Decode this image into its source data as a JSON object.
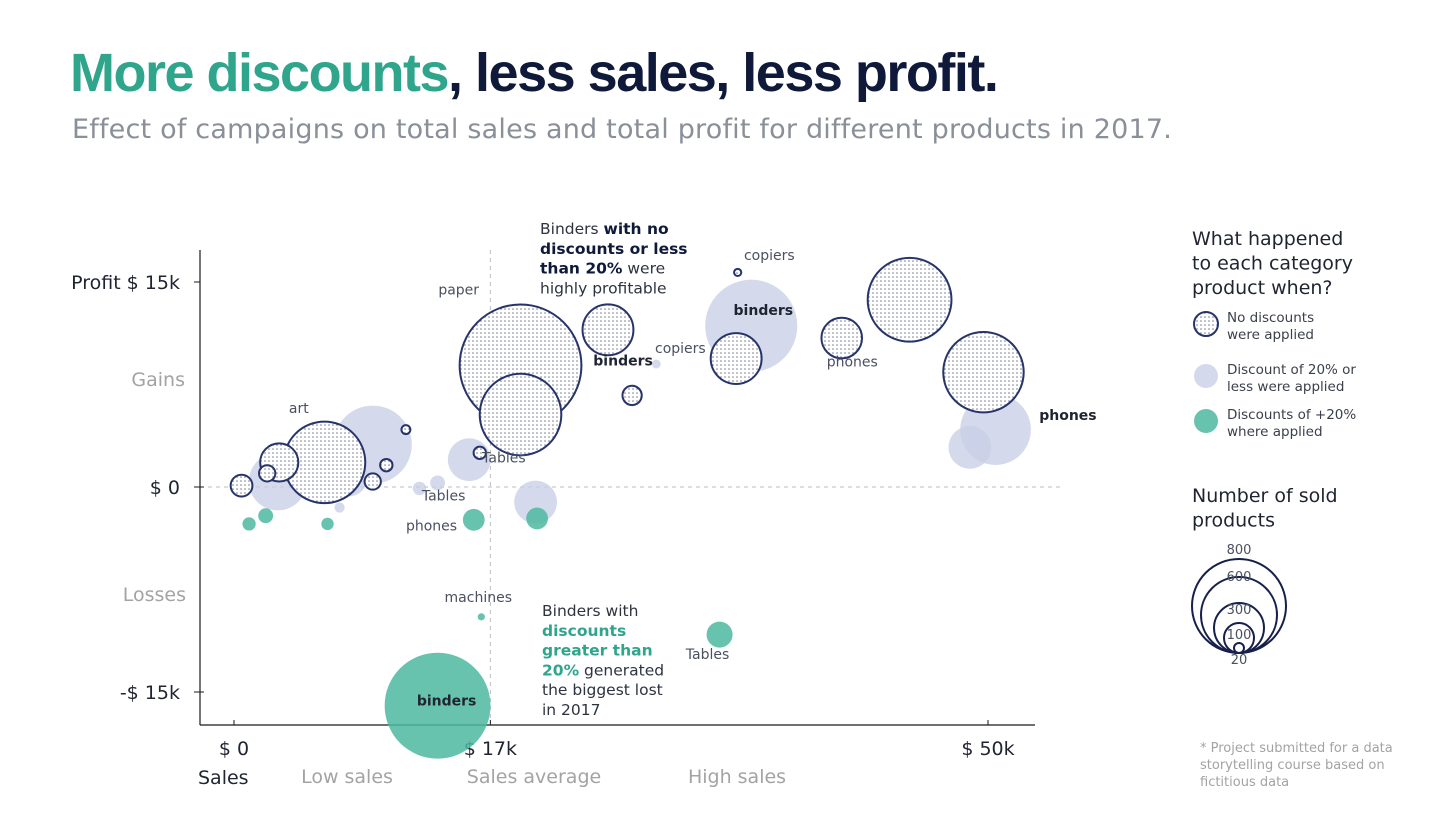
{
  "title": {
    "highlight": "More discounts",
    "rest": ", less sales, less profit."
  },
  "subtitle": "Effect of campaigns on total sales and total profit for different products in 2017.",
  "colors": {
    "no_discount": "#27346a",
    "low_discount": "#c8cfe6",
    "high_discount": "#4cb9a0",
    "title_highlight": "#2fa58c",
    "title_dark": "#0f1a3a"
  },
  "chart_data": {
    "type": "scatter",
    "subtype": "bubble",
    "xlabel": "Sales",
    "ylabel": "Profit",
    "xlim": [
      -2300,
      53000
    ],
    "ylim": [
      -17000,
      17500
    ],
    "x_ticks": [
      {
        "value": 0,
        "label": "$ 0"
      },
      {
        "value": 17000,
        "label": "$ 17k"
      },
      {
        "value": 50000,
        "label": "$ 50k"
      }
    ],
    "y_ticks": [
      {
        "value": 15000,
        "label": "Profit $ 15k"
      },
      {
        "value": 0,
        "label": "$ 0"
      },
      {
        "value": -15000,
        "label": "-$ 15k"
      }
    ],
    "reference_lines": {
      "x": 17000,
      "y": 0
    },
    "zone_labels": {
      "gains": "Gains",
      "losses": "Losses",
      "low_sales": "Low sales",
      "sales_average": "Sales average",
      "high_sales": "High sales"
    },
    "series": [
      {
        "name": "No discounts were applied",
        "key": "none",
        "points": [
          {
            "x": 19000,
            "y": 8900,
            "n": 800
          },
          {
            "x": 19000,
            "y": 5300,
            "n": 350
          },
          {
            "x": 6000,
            "y": 1800,
            "n": 350
          },
          {
            "x": 24800,
            "y": 11500,
            "n": 130
          },
          {
            "x": 33300,
            "y": 9400,
            "n": 130
          },
          {
            "x": 44800,
            "y": 13700,
            "n": 370
          },
          {
            "x": 49700,
            "y": 8400,
            "n": 340
          },
          {
            "x": 40300,
            "y": 10900,
            "n": 80
          },
          {
            "x": 3000,
            "y": 1800,
            "n": 70
          },
          {
            "x": 2200,
            "y": 1000,
            "n": 10
          },
          {
            "x": 500,
            "y": 100,
            "n": 20
          },
          {
            "x": 9200,
            "y": 400,
            "n": 10
          },
          {
            "x": 10100,
            "y": 1600,
            "n": 5
          },
          {
            "x": 26400,
            "y": 6700,
            "n": 15
          },
          {
            "x": 16300,
            "y": 2500,
            "n": 5
          },
          {
            "x": 11400,
            "y": 4200,
            "n": 2
          },
          {
            "x": 33400,
            "y": 15700,
            "n": 1
          }
        ]
      },
      {
        "name": "Discount of 20% or less were applied",
        "key": "low",
        "points": [
          {
            "x": 34300,
            "y": 11800,
            "n": 450
          },
          {
            "x": 9200,
            "y": 3100,
            "n": 320
          },
          {
            "x": 50500,
            "y": 4200,
            "n": 260
          },
          {
            "x": 48800,
            "y": 2900,
            "n": 90
          },
          {
            "x": 15600,
            "y": 2000,
            "n": 90
          },
          {
            "x": 2900,
            "y": 400,
            "n": 170
          },
          {
            "x": 20000,
            "y": -1100,
            "n": 90
          },
          {
            "x": 7600,
            "y": 700,
            "n": 70
          },
          {
            "x": 500,
            "y": 0,
            "n": 20
          },
          {
            "x": 13500,
            "y": 300,
            "n": 8
          },
          {
            "x": 12300,
            "y": -100,
            "n": 6
          },
          {
            "x": 7000,
            "y": -1500,
            "n": 3
          },
          {
            "x": 28000,
            "y": 9000,
            "n": 2
          }
        ]
      },
      {
        "name": "Discounts of +20% where applied",
        "key": "high",
        "points": [
          {
            "x": 13500,
            "y": -16000,
            "n": 600
          },
          {
            "x": 32200,
            "y": -10800,
            "n": 30
          },
          {
            "x": 15900,
            "y": -2400,
            "n": 20
          },
          {
            "x": 20100,
            "y": -2300,
            "n": 20
          },
          {
            "x": 2100,
            "y": -2100,
            "n": 8
          },
          {
            "x": 1000,
            "y": -2700,
            "n": 6
          },
          {
            "x": 6200,
            "y": -2700,
            "n": 5
          },
          {
            "x": 16400,
            "y": -9500,
            "n": 1
          }
        ]
      }
    ],
    "point_labels": [
      {
        "text": "paper",
        "x": 14900,
        "y": 14100,
        "weight": "normal"
      },
      {
        "text": "art",
        "x": 4300,
        "y": 5400,
        "weight": "normal"
      },
      {
        "text": "copiers",
        "x": 35500,
        "y": 16600,
        "weight": "normal"
      },
      {
        "text": "binders",
        "x": 35100,
        "y": 12600,
        "weight": "bold"
      },
      {
        "text": "copiers",
        "x": 29600,
        "y": 9800,
        "weight": "normal"
      },
      {
        "text": "binders",
        "x": 25800,
        "y": 8900,
        "weight": "bold"
      },
      {
        "text": "phones",
        "x": 41000,
        "y": 8800,
        "weight": "normal"
      },
      {
        "text": "phones",
        "x": 55300,
        "y": 4900,
        "weight": "bold"
      },
      {
        "text": "Tables",
        "x": 17900,
        "y": 1800,
        "weight": "normal"
      },
      {
        "text": "Tables",
        "x": 13900,
        "y": -1000,
        "weight": "normal"
      },
      {
        "text": "phones",
        "x": 13100,
        "y": -3200,
        "weight": "normal"
      },
      {
        "text": "machines",
        "x": 16200,
        "y": -8400,
        "weight": "normal"
      },
      {
        "text": "Tables",
        "x": 31400,
        "y": -12600,
        "weight": "normal"
      },
      {
        "text": "binders",
        "x": 14100,
        "y": -16000,
        "weight": "bold"
      }
    ],
    "annotations": [
      {
        "key": "ann_top",
        "lines": [
          [
            {
              "text": "Binders ",
              "style": "normal"
            },
            {
              "text": "with no",
              "style": "dark"
            }
          ],
          [
            {
              "text": "discounts or less",
              "style": "dark"
            }
          ],
          [
            {
              "text": "than 20%",
              "style": "dark"
            },
            {
              "text": " were",
              "style": "normal"
            }
          ],
          [
            {
              "text": "highly profitable",
              "style": "normal"
            }
          ]
        ]
      },
      {
        "key": "ann_bottom",
        "lines": [
          [
            {
              "text": "Binders with",
              "style": "normal"
            }
          ],
          [
            {
              "text": "discounts",
              "style": "green"
            }
          ],
          [
            {
              "text": "greater than",
              "style": "green"
            }
          ],
          [
            {
              "text": "20%",
              "style": "green"
            },
            {
              "text": " generated",
              "style": "normal"
            }
          ],
          [
            {
              "text": "the biggest lost",
              "style": "normal"
            }
          ],
          [
            {
              "text": "in 2017",
              "style": "normal"
            }
          ]
        ]
      }
    ],
    "legend": {
      "title_lines": [
        "What happened",
        "to each category",
        "product when?"
      ],
      "items": [
        {
          "key": "none",
          "lines": [
            "No discounts",
            "were applied"
          ]
        },
        {
          "key": "low",
          "lines": [
            "Discount of 20% or",
            "less were applied"
          ]
        },
        {
          "key": "high",
          "lines": [
            "Discounts of +20%",
            "where applied"
          ]
        }
      ],
      "size_title_lines": [
        "Number of sold",
        "products"
      ],
      "size_values": [
        800,
        600,
        300,
        100,
        20
      ]
    }
  },
  "footnote": "* Project submitted for a data storytelling course based on fictitious data"
}
